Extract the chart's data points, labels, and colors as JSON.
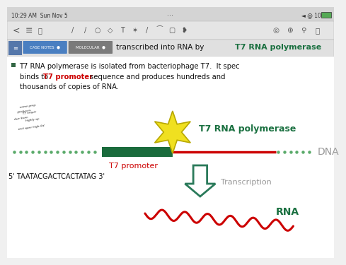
{
  "bg_color": "#f0f0f0",
  "white": "#ffffff",
  "status_bar_bg": "#d4d4d4",
  "toolbar_bg": "#e5e5e5",
  "tab_bar_bg": "#e0e0e0",
  "tab_bar_border": "#b0b0b0",
  "tab_blue": "#4a7fc1",
  "tab_gray": "#7a7a7a",
  "notebook_icon_bg": "#5577aa",
  "time_text": "10:29 AM  Sun Nov 5",
  "status_right": "◄ @ 100%",
  "dots": "···",
  "body_text1": "T7 RNA polymerase is isolated from bacteriophage T7.  It spec",
  "body_text2a": "binds to ",
  "body_text2b": "T7 promoter",
  "body_text2c": " sequence and produces hundreds and",
  "body_text3": "thousands of copies of RNA.",
  "title_prefix": "transcribed into RNA by ",
  "title_bold": "T7 RNA polymerase",
  "tab1": "CASE NOTES",
  "tab2": "MOLECULAR",
  "dna_label": "DNA",
  "t7_poly_label": "T7 RNA polymerase",
  "t7_promoter_label": "T7 promoter",
  "sequence_label": "5' TAATACGACTCACTATAG 3'",
  "transcription_label": "Transcription",
  "rna_label": "RNA",
  "green_dark": "#1a6b3c",
  "green_label": "#1a7040",
  "red_color": "#cc0000",
  "star_yellow": "#f0e020",
  "star_outline": "#b8a800",
  "arrow_color": "#2a7a5a",
  "dot_color": "#5aaa6a",
  "text_black": "#111111",
  "text_gray": "#999999",
  "bullet_color": "#336644",
  "handwrite_color": "#222222"
}
